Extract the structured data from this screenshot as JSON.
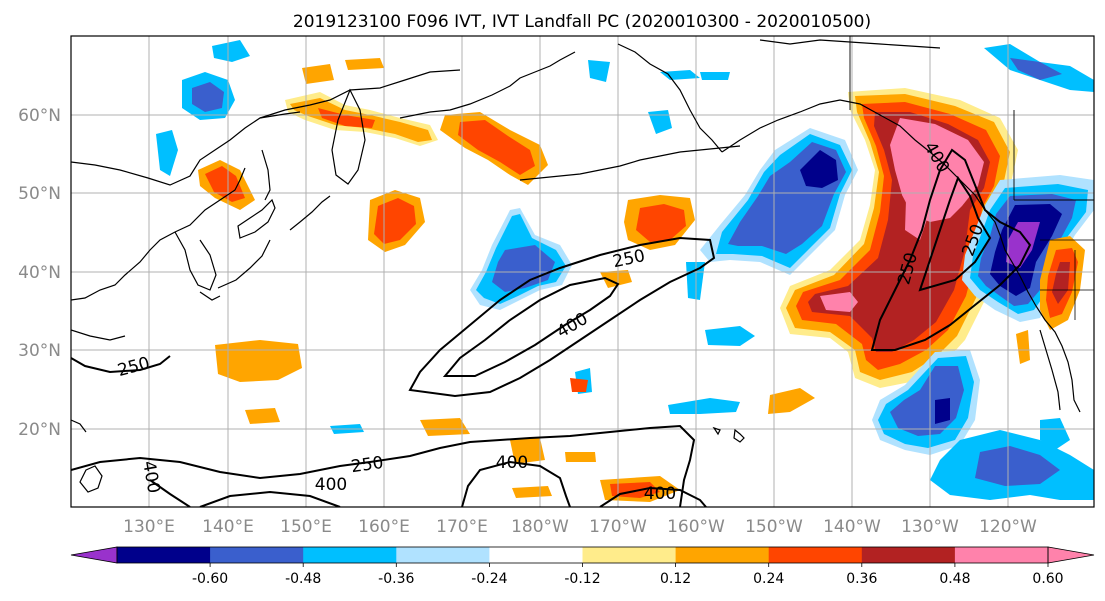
{
  "title": "2019123100 F096 IVT, IVT Landfall PC (2020010300 - 2020010500)",
  "axes": {
    "lat_ticks": [
      "60°N",
      "50°N",
      "40°N",
      "30°N",
      "20°N"
    ],
    "lon_ticks": [
      "130°E",
      "140°E",
      "150°E",
      "160°E",
      "170°E",
      "180°W",
      "170°W",
      "160°W",
      "150°W",
      "140°W",
      "130°W",
      "120°W"
    ],
    "lat_range": [
      10,
      70
    ],
    "lon_range_east": [
      120,
      251
    ]
  },
  "colorbar": {
    "levels": [
      "-0.60",
      "-0.48",
      "-0.36",
      "-0.24",
      "-0.12",
      "0.12",
      "0.24",
      "0.36",
      "0.48",
      "0.60"
    ],
    "colors": [
      "#9932cc",
      "#00008b",
      "#3a5fcd",
      "#00bfff",
      "#b0e2ff",
      "#ffffff",
      "#ffec8b",
      "#ffa500",
      "#ff4500",
      "#b22222",
      "#ff82ab",
      "#ff82ab"
    ],
    "extend": "both"
  },
  "contour_labels": [
    {
      "text": "250"
    },
    {
      "text": "400"
    },
    {
      "text": "250"
    },
    {
      "text": "250"
    },
    {
      "text": "400"
    },
    {
      "text": "250"
    },
    {
      "text": "400"
    },
    {
      "text": "400"
    },
    {
      "text": "400"
    },
    {
      "text": "250"
    },
    {
      "text": "400"
    }
  ]
}
